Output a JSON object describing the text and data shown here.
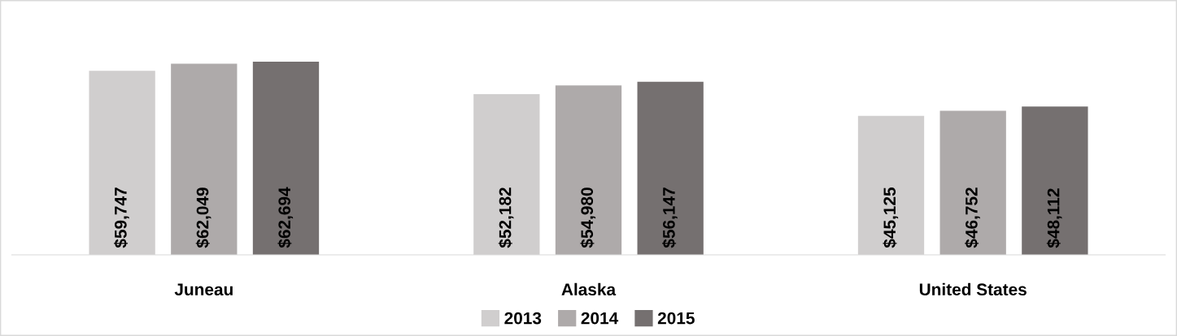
{
  "chart_data": {
    "type": "bar",
    "categories": [
      "Juneau",
      "Alaska",
      "United States"
    ],
    "series": [
      {
        "name": "2013",
        "color": "#d0cece",
        "values": [
          59747,
          52182,
          45125
        ],
        "value_labels": [
          "$59,747",
          "$52,182",
          "$45,125"
        ]
      },
      {
        "name": "2014",
        "color": "#aeaaaa",
        "values": [
          62049,
          54980,
          46752
        ],
        "value_labels": [
          "$62,049",
          "$54,980",
          "$46,752"
        ]
      },
      {
        "name": "2015",
        "color": "#757070",
        "values": [
          62694,
          56147,
          48112
        ],
        "value_labels": [
          "$62,694",
          "$56,147",
          "$48,112"
        ]
      }
    ],
    "legend": "bottom"
  }
}
